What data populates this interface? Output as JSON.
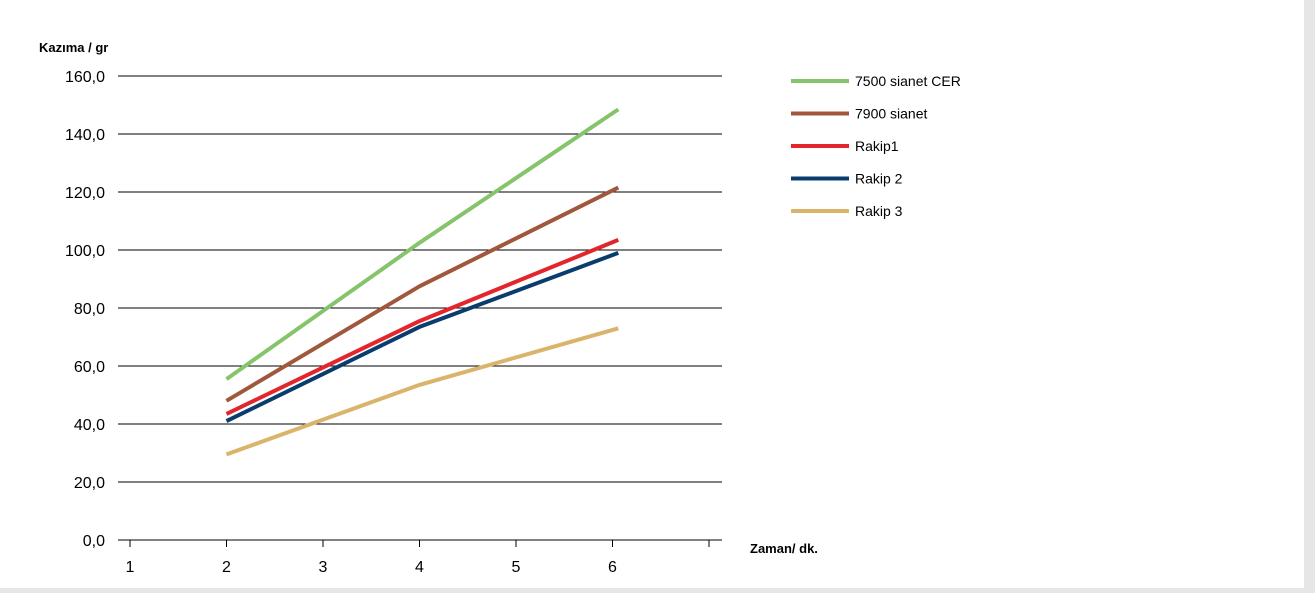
{
  "chart_data": {
    "type": "line",
    "ylabel": "Kazıma / gr",
    "xlabel": "Zaman/ dk.",
    "x_ticks": [
      1,
      2,
      3,
      4,
      5,
      6
    ],
    "y_ticks": [
      "0,0",
      "20,0",
      "40,0",
      "60,0",
      "80,0",
      "100,0",
      "120,0",
      "140,0",
      "160,0"
    ],
    "y_tick_values": [
      0,
      20,
      40,
      60,
      80,
      100,
      120,
      140,
      160
    ],
    "xlim": [
      1,
      7.1
    ],
    "ylim": [
      0,
      160
    ],
    "grid": "horizontal",
    "legend_position": "right",
    "series": [
      {
        "name": "7500 sianet CER",
        "color": "#86c46b",
        "x": [
          2,
          4,
          6.06
        ],
        "y": [
          55.5,
          102.5,
          148.5
        ]
      },
      {
        "name": "7900 sianet",
        "color": "#a0573c",
        "x": [
          2,
          4,
          6.06
        ],
        "y": [
          48.0,
          87.5,
          121.5
        ]
      },
      {
        "name": "Rakip1",
        "color": "#e3262c",
        "x": [
          2,
          4,
          6.06
        ],
        "y": [
          43.5,
          75.5,
          103.5
        ]
      },
      {
        "name": "Rakip 2",
        "color": "#0a3c6e",
        "x": [
          2,
          4,
          6.06
        ],
        "y": [
          41.0,
          73.5,
          99.0
        ]
      },
      {
        "name": "Rakip 3",
        "color": "#d9b46a",
        "x": [
          2,
          4,
          6.06
        ],
        "y": [
          29.5,
          53.5,
          73.0
        ]
      }
    ]
  }
}
